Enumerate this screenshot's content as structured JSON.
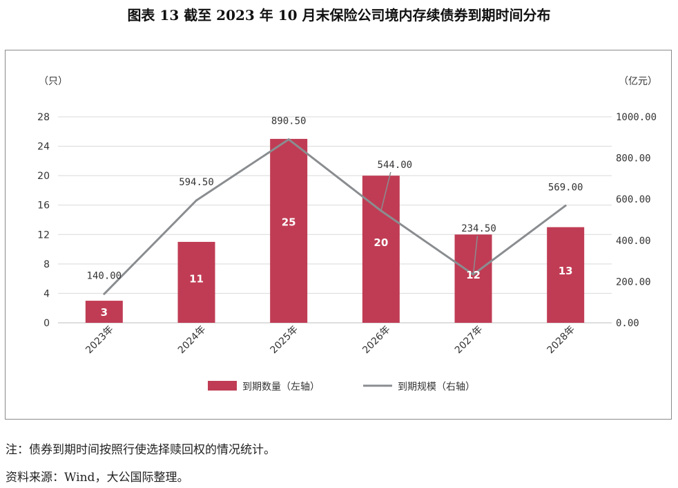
{
  "page": {
    "title": "图表 13  截至 2023 年 10 月末保险公司境内存续债券到期时间分布",
    "note": "注：债券到期时间按照行使选择赎回权的情况统计。",
    "source": "资料来源：Wind，大公国际整理。"
  },
  "chart_data": {
    "type": "bar",
    "title": "",
    "categories": [
      "2023年",
      "2024年",
      "2025年",
      "2026年",
      "2027年",
      "2028年"
    ],
    "left_axis": {
      "unit": "（只）",
      "ylim": [
        0,
        28
      ],
      "ticks": [
        "0",
        "4",
        "8",
        "12",
        "16",
        "20",
        "24",
        "28"
      ]
    },
    "right_axis": {
      "unit": "（亿元）",
      "ylim": [
        0,
        1000
      ],
      "ticks": [
        "0.00",
        "200.00",
        "400.00",
        "600.00",
        "800.00",
        "1000.00"
      ]
    },
    "grid": true,
    "legend_position": "bottom",
    "series": [
      {
        "name": "到期数量（左轴）",
        "type": "bar",
        "axis": "left",
        "color": "#c03c54",
        "values": [
          3,
          11,
          25,
          20,
          12,
          13
        ],
        "labels": [
          "3",
          "11",
          "25",
          "20",
          "12",
          "13"
        ]
      },
      {
        "name": "到期规模（右轴）",
        "type": "line",
        "axis": "right",
        "color": "#8a8d90",
        "values": [
          140.0,
          594.5,
          890.5,
          544.0,
          234.5,
          569.0
        ],
        "labels": [
          "140.00",
          "594.50",
          "890.50",
          "544.00",
          "234.50",
          "569.00"
        ]
      }
    ]
  }
}
